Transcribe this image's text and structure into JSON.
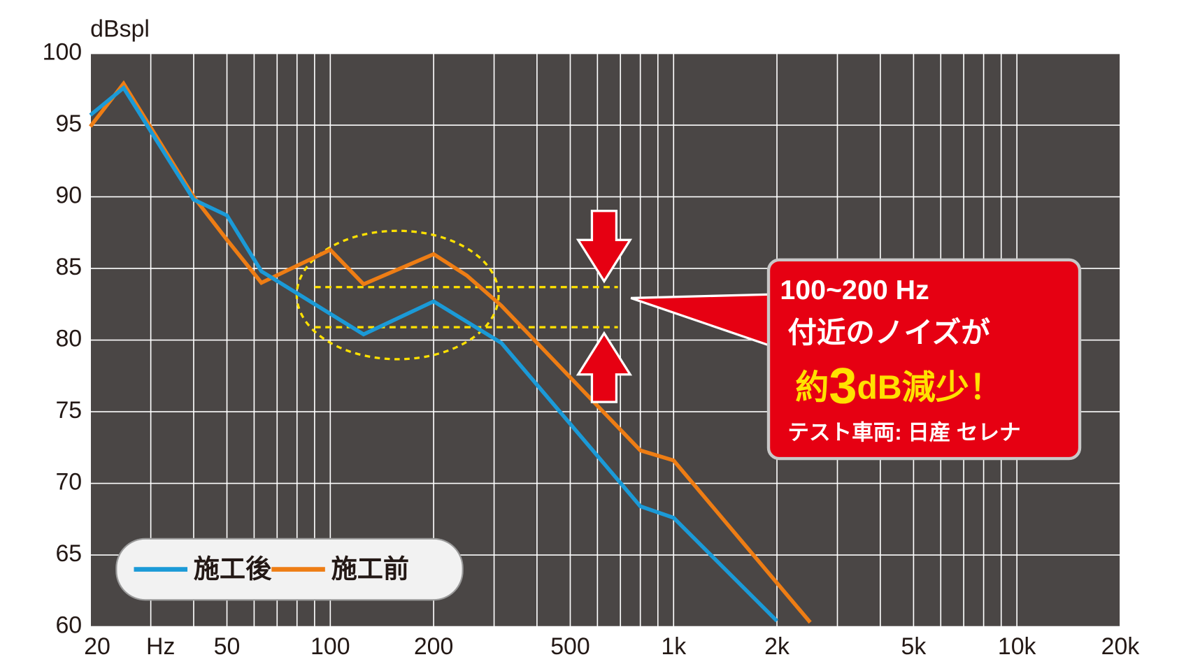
{
  "chart_data": {
    "type": "line",
    "ylabel": "dBspl",
    "xlabel": "Hz",
    "log_x": true,
    "xlim": [
      20,
      20000
    ],
    "ylim": [
      60,
      100
    ],
    "xticks": [
      20,
      50,
      100,
      200,
      500,
      {
        "value": 1000,
        "label": "1k"
      },
      {
        "value": 2000,
        "label": "2k"
      },
      {
        "value": 5000,
        "label": "5k"
      },
      {
        "value": 10000,
        "label": "10k"
      },
      {
        "value": 20000,
        "label": "20k"
      }
    ],
    "x_minor_ticks": [
      30,
      40,
      60,
      70,
      80,
      90,
      300,
      400,
      600,
      700,
      800,
      900,
      3000,
      4000,
      6000,
      7000,
      8000,
      9000
    ],
    "yticks": [
      60,
      65,
      70,
      75,
      80,
      85,
      90,
      95,
      100
    ],
    "grid": true,
    "series": [
      {
        "name": "施工後",
        "color": "#1b9ad7",
        "x": [
          20,
          25,
          40,
          50,
          63,
          125,
          200,
          315,
          800,
          1000,
          2000
        ],
        "values": [
          95.7,
          97.6,
          89.8,
          88.7,
          84.8,
          80.4,
          82.7,
          79.8,
          68.4,
          67.6,
          60.4
        ]
      },
      {
        "name": "施工前",
        "color": "#ee7d14",
        "x": [
          20,
          25,
          40,
          50,
          63,
          100,
          125,
          200,
          250,
          315,
          800,
          1000,
          2500
        ],
        "values": [
          94.9,
          97.9,
          90.0,
          87.0,
          84.0,
          86.3,
          83.9,
          86.0,
          84.5,
          82.4,
          72.3,
          71.6,
          60.3
        ]
      }
    ],
    "reference_lines": [
      83.7,
      80.9
    ],
    "callout": {
      "line1": "100~200 Hz",
      "line2": "付近のノイズが",
      "big": [
        "約",
        "3",
        "dB減少！"
      ],
      "note": "テスト車両: 日産 セレナ"
    }
  }
}
